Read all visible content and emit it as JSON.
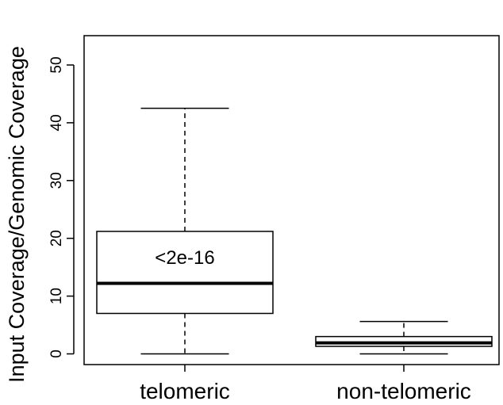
{
  "chart_data": {
    "type": "box",
    "title": "",
    "ylabel": "Input Coverage/Genomic Coverage",
    "xlabel": "",
    "ylim": [
      -1.5,
      55
    ],
    "yticks": [
      0,
      10,
      20,
      30,
      40,
      50
    ],
    "ytick_labels": [
      "0",
      "10",
      "20",
      "30",
      "40",
      "50"
    ],
    "categories": [
      "telomeric",
      "non-telomeric"
    ],
    "boxes": [
      {
        "name": "telomeric",
        "whisker_low": 0,
        "q1": 7,
        "median": 12.2,
        "q3": 21.2,
        "whisker_high": 42.5
      },
      {
        "name": "non-telomeric",
        "whisker_low": 0,
        "q1": 1.3,
        "median": 1.9,
        "q3": 3,
        "whisker_high": 5.6
      }
    ],
    "annotation": "<2e-16",
    "grid": false,
    "legend": "none"
  }
}
